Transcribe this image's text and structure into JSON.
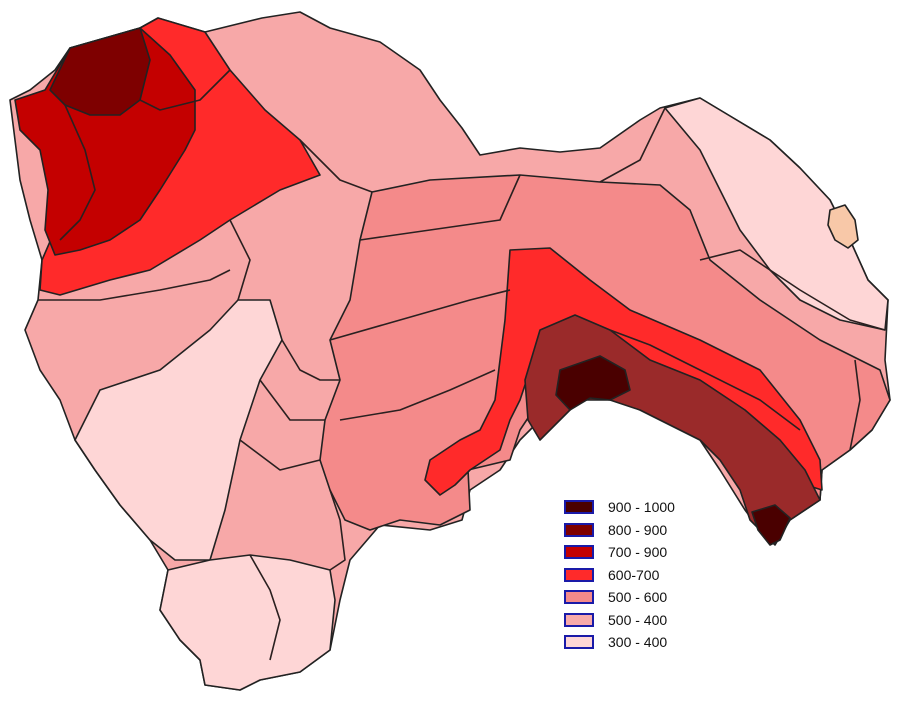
{
  "legend": {
    "items": [
      {
        "label": "900 - 1000",
        "color": "#4a0000"
      },
      {
        "label": "800 - 900",
        "color": "#7e0000"
      },
      {
        "label": "700 - 900",
        "color": "#c40000"
      },
      {
        "label": "600-700",
        "color": "#ff2a2a"
      },
      {
        "label": "500 - 600",
        "color": "#f48a8a"
      },
      {
        "label": "500 - 400",
        "color": "#f8aaaa"
      },
      {
        "label": "300 - 400",
        "color": "#fed6d6"
      }
    ]
  },
  "map": {
    "zone_colors": {
      "outline_fill": "#f7a8a8",
      "band_300_400": "#fed6d6",
      "band_500_600": "#f48a8a",
      "band_600_700": "#ff2a2a",
      "band_700_900": "#c40000",
      "band_800_900": "#7e0000",
      "band_800_900_alt": "#9a2a2a",
      "band_900_1000": "#4a0000",
      "band_small_peach": "#f8c8a8"
    }
  }
}
